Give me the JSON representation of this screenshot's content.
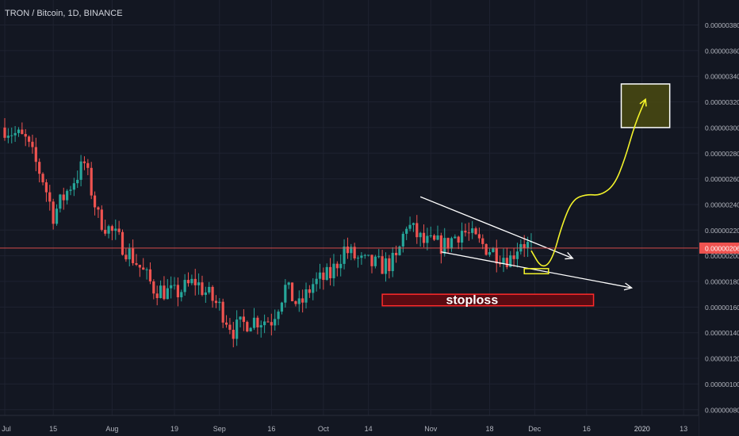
{
  "header": {
    "title": "TRON / Bitcoin, 1D, BINANCE"
  },
  "price_axis": {
    "ticks": [
      "0.00000380",
      "0.00000360",
      "0.00000340",
      "0.00000320",
      "0.00000300",
      "0.00000280",
      "0.00000260",
      "0.00000240",
      "0.00000220",
      "0.00000200",
      "0.00000180",
      "0.00000160",
      "0.00000140",
      "0.00000120",
      "0.00000100",
      "0.00000080"
    ],
    "current_price_label": "0.00000206"
  },
  "time_axis": {
    "labels": [
      "Jul",
      "15",
      "Aug",
      "19",
      "Sep",
      "16",
      "Oct",
      "14",
      "Nov",
      "18",
      "Dec",
      "16",
      "2020",
      "13"
    ]
  },
  "annotation": {
    "stoploss_label": "stoploss"
  },
  "colors": {
    "background": "#131722",
    "grid": "#1e2230",
    "axis_text": "#b2b5be",
    "up_candle": "#26a69a",
    "down_candle": "#ef5350",
    "price_line": "#ef5350",
    "stoploss_fill": "#5a0b12",
    "stoploss_border": "#ff2a2a",
    "forecast_path": "#f3f32a",
    "target_box_fill": "#4a4a10",
    "trendline": "#ffffff"
  },
  "chart_data": {
    "type": "candlestick",
    "symbol": "TRON / Bitcoin",
    "interval": "1D",
    "exchange": "BINANCE",
    "y_unit": "BTC",
    "ylim": [
      7e-07,
      3.93e-06
    ],
    "current_price": 2.06e-06,
    "price_path": [
      [
        "2019-07-01",
        3e-06
      ],
      [
        "2019-07-07",
        2.9e-06
      ],
      [
        "2019-07-12",
        2.6e-06
      ],
      [
        "2019-07-15",
        2.32e-06
      ],
      [
        "2019-07-20",
        2.55e-06
      ],
      [
        "2019-07-24",
        2.72e-06
      ],
      [
        "2019-07-28",
        2.3e-06
      ],
      [
        "2019-08-03",
        2.12e-06
      ],
      [
        "2019-08-08",
        1.95e-06
      ],
      [
        "2019-08-13",
        1.75e-06
      ],
      [
        "2019-08-19",
        1.7e-06
      ],
      [
        "2019-08-25",
        1.8e-06
      ],
      [
        "2019-09-01",
        1.6e-06
      ],
      [
        "2019-09-05",
        1.42e-06
      ],
      [
        "2019-09-10",
        1.5e-06
      ],
      [
        "2019-09-16",
        1.5e-06
      ],
      [
        "2019-09-20",
        1.75e-06
      ],
      [
        "2019-09-24",
        1.6e-06
      ],
      [
        "2019-09-28",
        1.78e-06
      ],
      [
        "2019-10-03",
        1.85e-06
      ],
      [
        "2019-10-07",
        2.05e-06
      ],
      [
        "2019-10-12",
        1.95e-06
      ],
      [
        "2019-10-18",
        1.92e-06
      ],
      [
        "2019-10-22",
        1.96e-06
      ],
      [
        "2019-10-25",
        2.25e-06
      ],
      [
        "2019-10-30",
        2.1e-06
      ],
      [
        "2019-11-05",
        2.08e-06
      ],
      [
        "2019-11-10",
        2.2e-06
      ],
      [
        "2019-11-15",
        2.1e-06
      ],
      [
        "2019-11-20",
        2.02e-06
      ],
      [
        "2019-11-24",
        1.98e-06
      ],
      [
        "2019-11-27",
        2.12e-06
      ],
      [
        "2019-11-30",
        2.06e-06
      ]
    ],
    "current_price_line": 2.06e-06,
    "stoploss_zone": {
      "x": [
        "2019-10-18",
        "2019-12-18"
      ],
      "y": [
        1.61e-06,
        1.7e-06
      ]
    },
    "target_zone": {
      "x": [
        "2019-12-26",
        "2020-01-09"
      ],
      "y": [
        3e-06,
        3.34e-06
      ]
    },
    "trendline_upper": [
      [
        "2019-10-29",
        2.46e-06
      ],
      [
        "2019-12-12",
        1.98e-06
      ]
    ],
    "trendline_lower": [
      [
        "2019-11-04",
        2.03e-06
      ],
      [
        "2019-12-29",
        1.75e-06
      ]
    ],
    "entry_box": {
      "x": [
        "2019-11-28",
        "2019-12-05"
      ],
      "y": [
        1.86e-06,
        1.9e-06
      ]
    },
    "forecast_path": [
      [
        "2019-11-30",
        2.04e-06
      ],
      [
        "2019-12-03",
        1.9e-06
      ],
      [
        "2019-12-06",
        1.96e-06
      ],
      [
        "2019-12-09",
        2.25e-06
      ],
      [
        "2019-12-12",
        2.44e-06
      ],
      [
        "2019-12-16",
        2.48e-06
      ],
      [
        "2019-12-20",
        2.47e-06
      ],
      [
        "2019-12-24",
        2.55e-06
      ],
      [
        "2019-12-27",
        2.75e-06
      ],
      [
        "2019-12-30",
        3.03e-06
      ],
      [
        "2020-01-02",
        3.22e-06
      ]
    ]
  }
}
